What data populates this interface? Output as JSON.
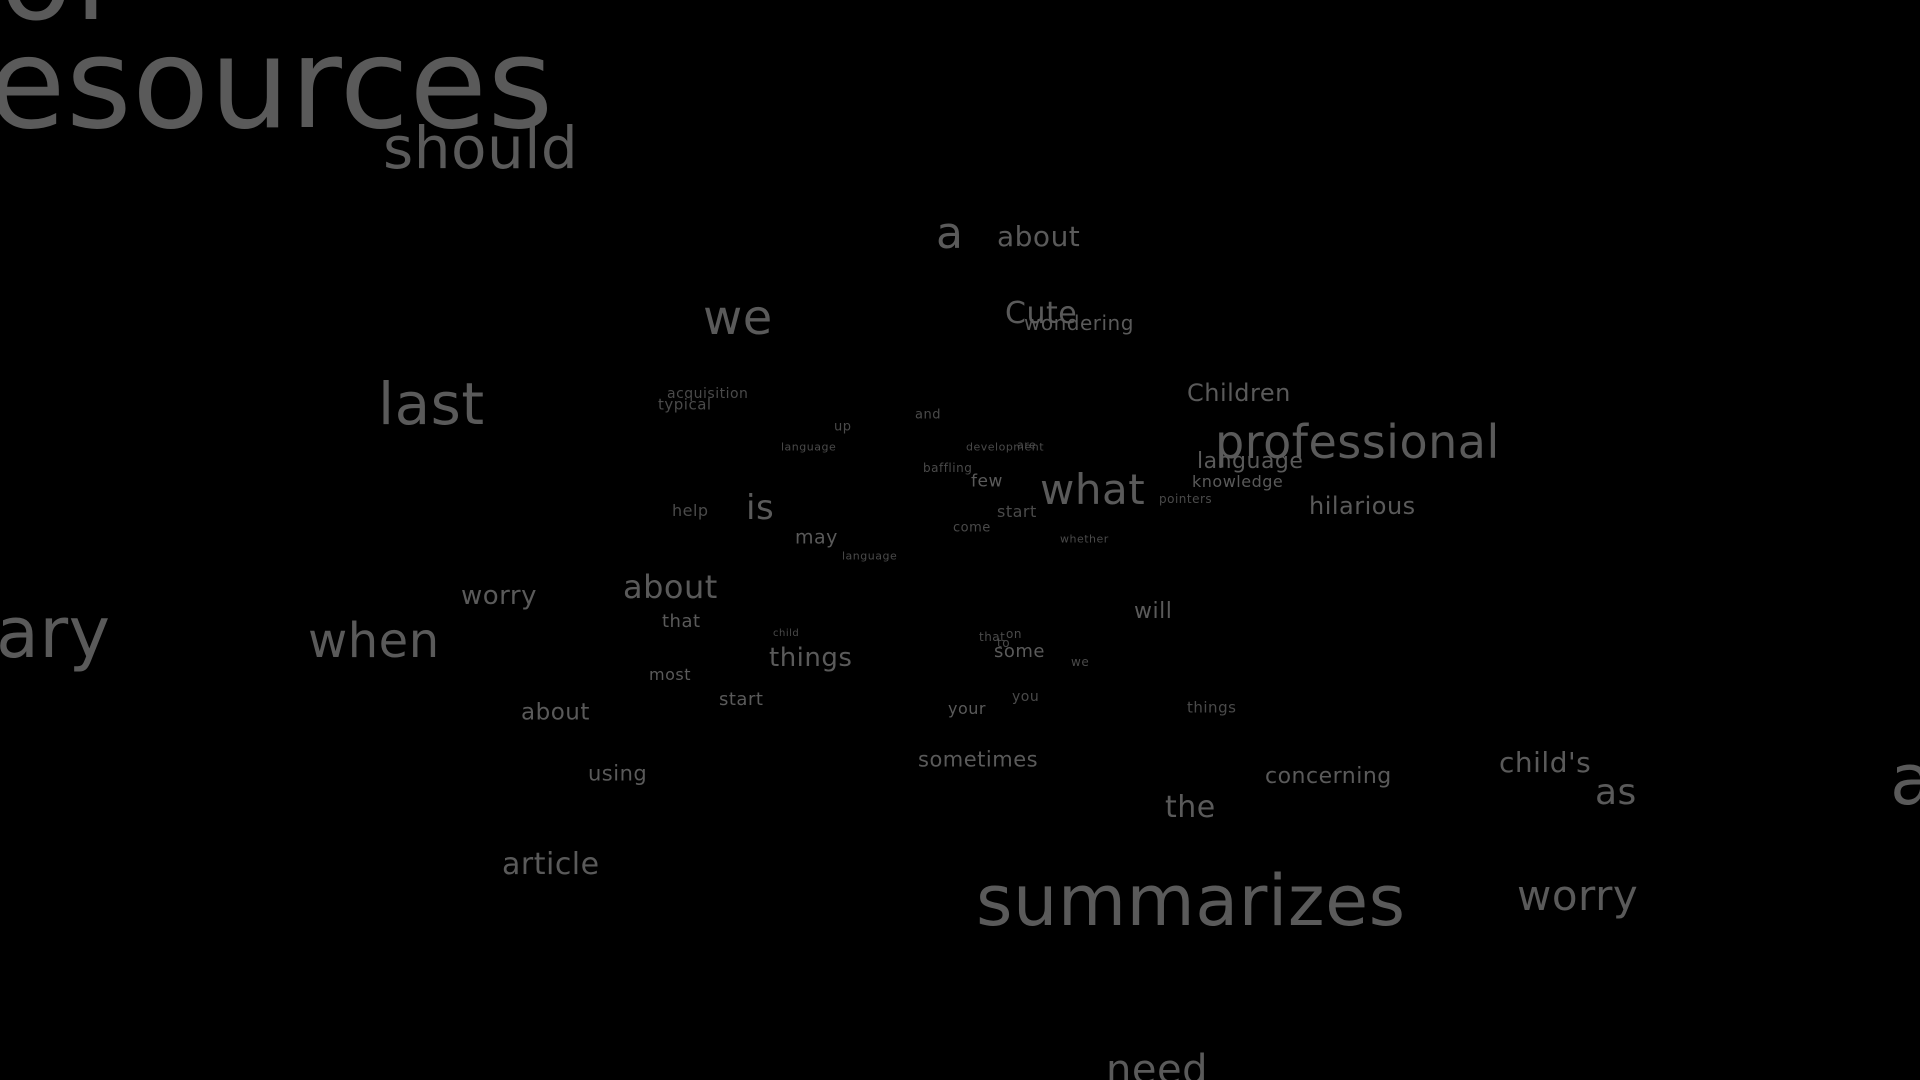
{
  "colors": {
    "background": "#000000",
    "text": "#5a5a5a"
  },
  "words": [
    {
      "text": "of",
      "tone": 2
    },
    {
      "text": "esources",
      "tone": 2
    },
    {
      "text": "should",
      "tone": 2
    },
    {
      "text": "a",
      "tone": 2
    },
    {
      "text": "about",
      "tone": 2
    },
    {
      "text": "we",
      "tone": 2
    },
    {
      "text": "Cute",
      "tone": 2
    },
    {
      "text": "wondering",
      "tone": 2
    },
    {
      "text": "last",
      "tone": 2
    },
    {
      "text": "acquisition",
      "tone": 1
    },
    {
      "text": "typical",
      "tone": 1
    },
    {
      "text": "Children",
      "tone": 2
    },
    {
      "text": "up",
      "tone": 1
    },
    {
      "text": "and",
      "tone": 1
    },
    {
      "text": "language",
      "tone": 1
    },
    {
      "text": "development",
      "tone": 1
    },
    {
      "text": "are",
      "tone": 1
    },
    {
      "text": "professional",
      "tone": 2
    },
    {
      "text": "language",
      "tone": 2
    },
    {
      "text": "baffling",
      "tone": 1
    },
    {
      "text": "few",
      "tone": 2
    },
    {
      "text": "what",
      "tone": 2
    },
    {
      "text": "knowledge",
      "tone": 2
    },
    {
      "text": "pointers",
      "tone": 1
    },
    {
      "text": "hilarious",
      "tone": 2
    },
    {
      "text": "help",
      "tone": 1
    },
    {
      "text": "is",
      "tone": 2
    },
    {
      "text": "start",
      "tone": 1
    },
    {
      "text": "may",
      "tone": 2
    },
    {
      "text": "come",
      "tone": 1
    },
    {
      "text": "whether",
      "tone": 1
    },
    {
      "text": "language",
      "tone": 1
    },
    {
      "text": "worry",
      "tone": 2
    },
    {
      "text": "about",
      "tone": 2
    },
    {
      "text": "will",
      "tone": 2
    },
    {
      "text": "that",
      "tone": 2
    },
    {
      "text": "ary",
      "tone": 2
    },
    {
      "text": "when",
      "tone": 2
    },
    {
      "text": "child",
      "tone": 1
    },
    {
      "text": "that",
      "tone": 1
    },
    {
      "text": "on",
      "tone": 1
    },
    {
      "text": "to",
      "tone": 1
    },
    {
      "text": "some",
      "tone": 2
    },
    {
      "text": "things",
      "tone": 2
    },
    {
      "text": "we",
      "tone": 1
    },
    {
      "text": "most",
      "tone": 2
    },
    {
      "text": "start",
      "tone": 2
    },
    {
      "text": "you",
      "tone": 1
    },
    {
      "text": "your",
      "tone": 2
    },
    {
      "text": "things",
      "tone": 1
    },
    {
      "text": "about",
      "tone": 2
    },
    {
      "text": "using",
      "tone": 2
    },
    {
      "text": "sometimes",
      "tone": 2
    },
    {
      "text": "concerning",
      "tone": 2
    },
    {
      "text": "child's",
      "tone": 2
    },
    {
      "text": "as",
      "tone": 2
    },
    {
      "text": "a",
      "tone": 2
    },
    {
      "text": "the",
      "tone": 2
    },
    {
      "text": "article",
      "tone": 2
    },
    {
      "text": "summarizes",
      "tone": 2
    },
    {
      "text": "worry",
      "tone": 2
    },
    {
      "text": "need",
      "tone": 2
    }
  ]
}
